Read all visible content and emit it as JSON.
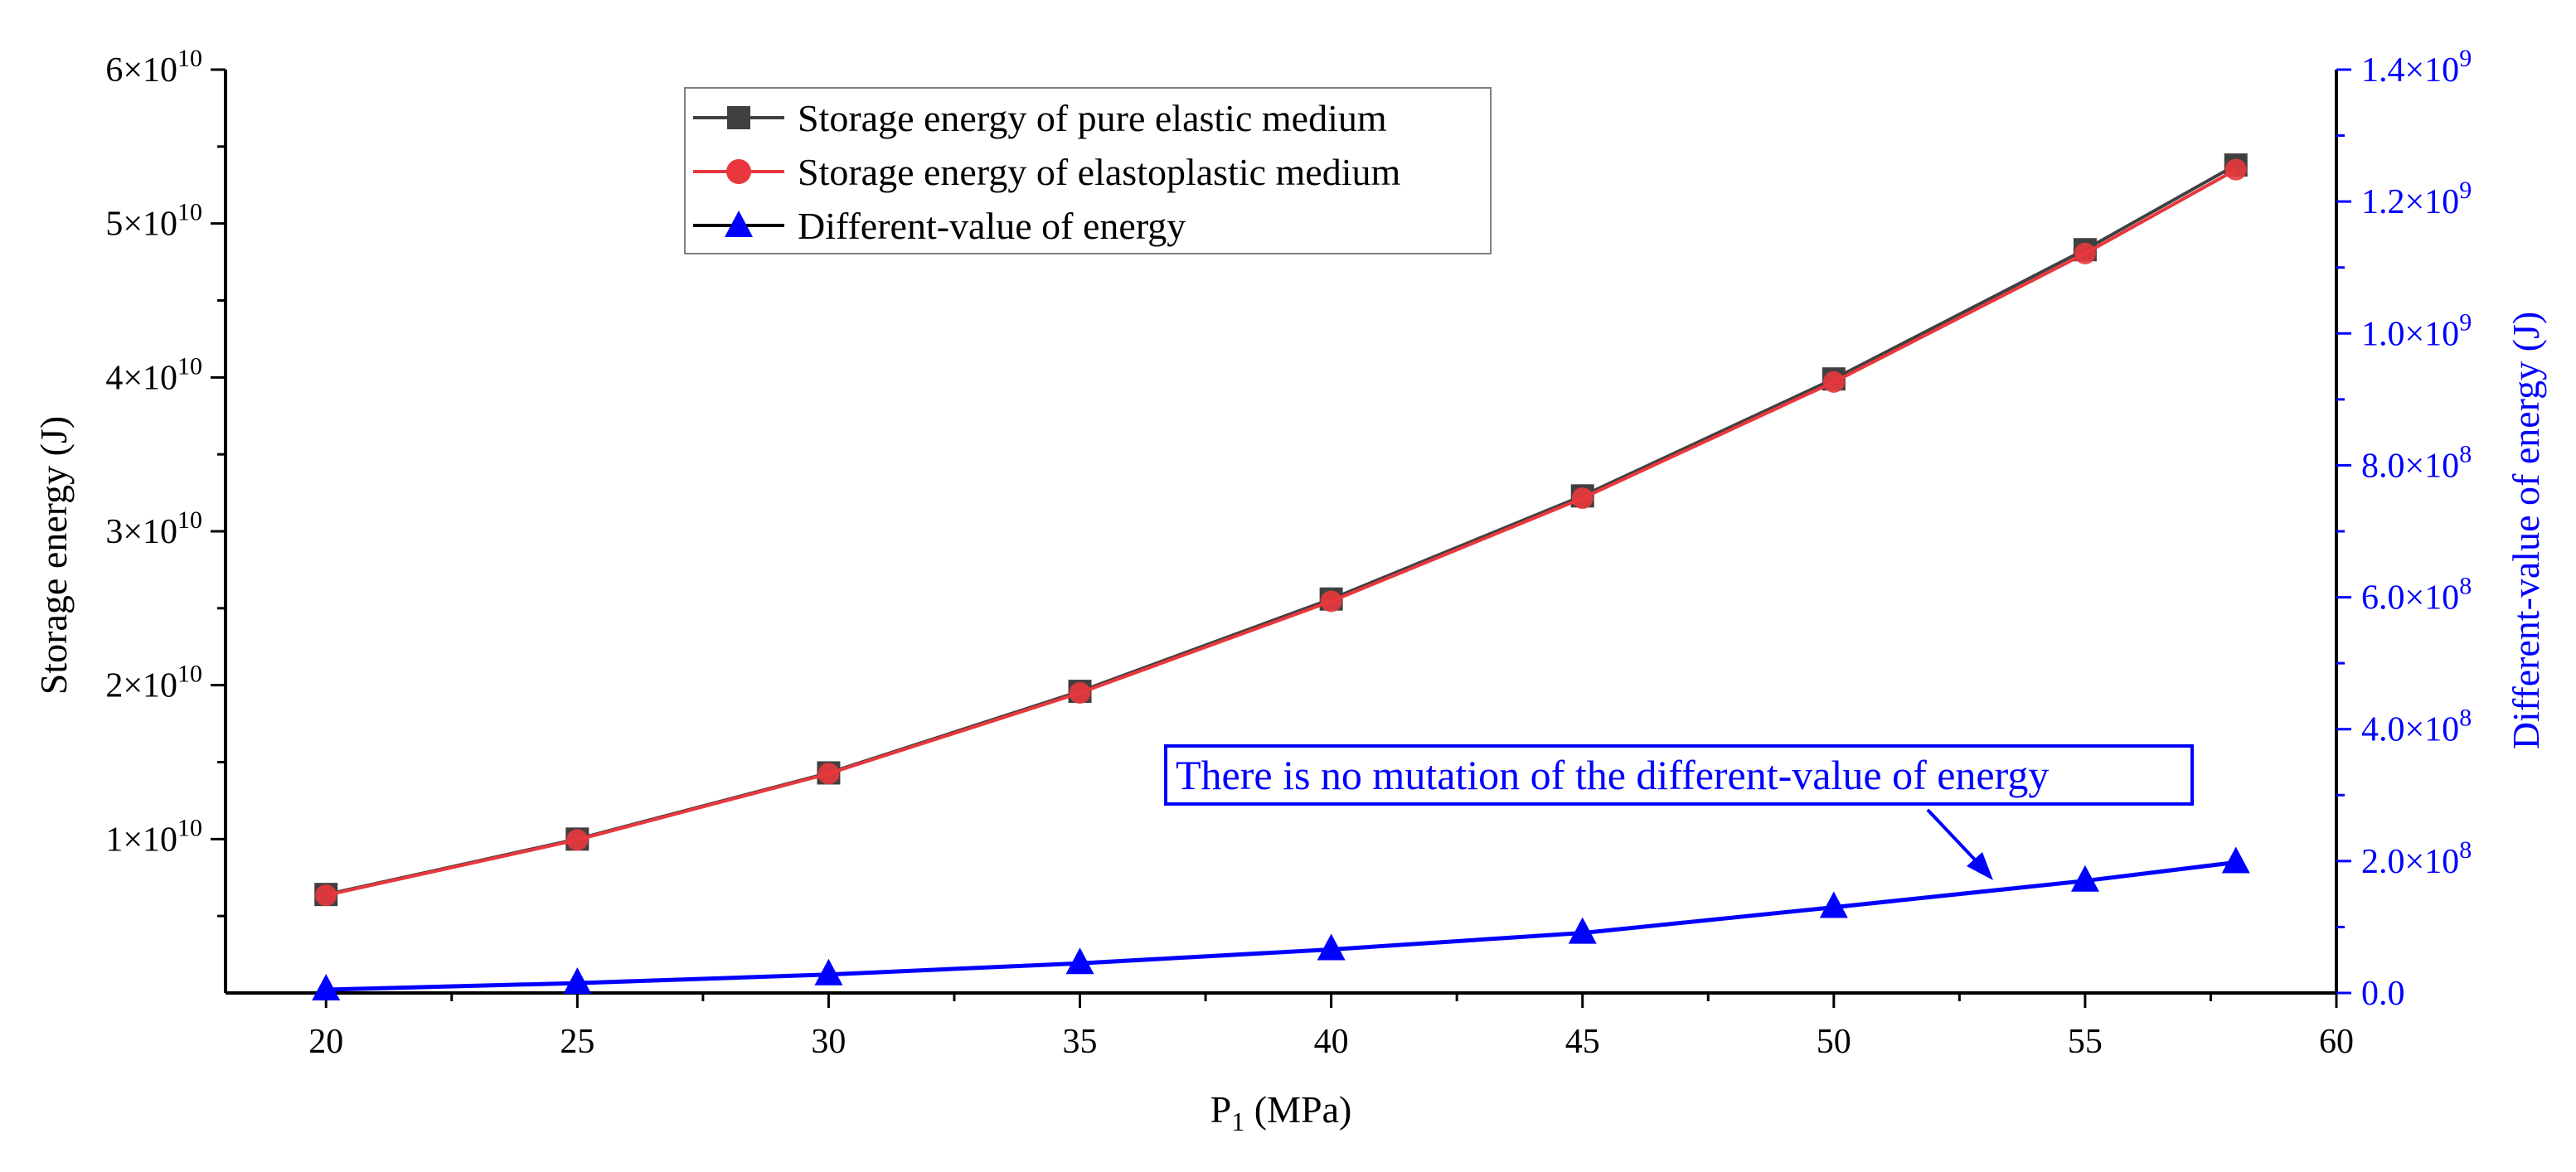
{
  "chart_data": {
    "type": "line",
    "x": [
      20,
      25,
      30,
      35,
      40,
      45,
      50,
      55,
      58
    ],
    "xlabel_main": "P",
    "xlabel_sub": "1",
    "xlabel_rest": " (MPa)",
    "xlim": [
      18,
      60
    ],
    "x_ticks": [
      "20",
      "25",
      "30",
      "35",
      "40",
      "45",
      "50",
      "55",
      "60"
    ],
    "ylabel_left": "Storage energy (J)",
    "ylim_left": [
      0,
      60000000000
    ],
    "y_ticks_left": [
      {
        "mant": "1×10",
        "exp": "10",
        "value": 10000000000
      },
      {
        "mant": "2×10",
        "exp": "10",
        "value": 20000000000
      },
      {
        "mant": "3×10",
        "exp": "10",
        "value": 30000000000
      },
      {
        "mant": "4×10",
        "exp": "10",
        "value": 40000000000
      },
      {
        "mant": "5×10",
        "exp": "10",
        "value": 50000000000
      },
      {
        "mant": "6×10",
        "exp": "10",
        "value": 60000000000
      }
    ],
    "ylabel_right": "Different-value of energy (J)",
    "ylim_right": [
      0,
      1400000000
    ],
    "y_ticks_right": [
      {
        "mant": "0.0",
        "exp": "",
        "value": 0
      },
      {
        "mant": "2.0×10",
        "exp": "8",
        "value": 200000000
      },
      {
        "mant": "4.0×10",
        "exp": "8",
        "value": 400000000
      },
      {
        "mant": "6.0×10",
        "exp": "8",
        "value": 600000000
      },
      {
        "mant": "8.0×10",
        "exp": "8",
        "value": 800000000
      },
      {
        "mant": "1.0×10",
        "exp": "9",
        "value": 1000000000
      },
      {
        "mant": "1.2×10",
        "exp": "9",
        "value": 1200000000
      },
      {
        "mant": "1.4×10",
        "exp": "9",
        "value": 1400000000
      }
    ],
    "series": [
      {
        "name": "Storage energy of pure elastic medium",
        "axis": "left",
        "marker": "square",
        "color": "#404040",
        "values": [
          6400000000,
          10000000000,
          14300000000,
          19600000000,
          25600000000,
          32300000000,
          39900000000,
          48300000000,
          53800000000
        ]
      },
      {
        "name": "Storage energy of elastoplastic medium",
        "axis": "left",
        "marker": "circle",
        "color": "#e8383d",
        "values": [
          6350000000,
          9950000000,
          14250000000,
          19500000000,
          25450000000,
          32150000000,
          39700000000,
          48050000000,
          53500000000
        ]
      },
      {
        "name": "Different-value of energy",
        "axis": "right",
        "marker": "triangle",
        "color": "#0000ff",
        "values": [
          5000000,
          15000000,
          28000000,
          45000000,
          66000000,
          91000000,
          130000000,
          170000000,
          198000000
        ]
      }
    ],
    "annotation": "There is no mutation of the different-value of energy",
    "grid": false,
    "legend_position": "top-left-inside"
  }
}
